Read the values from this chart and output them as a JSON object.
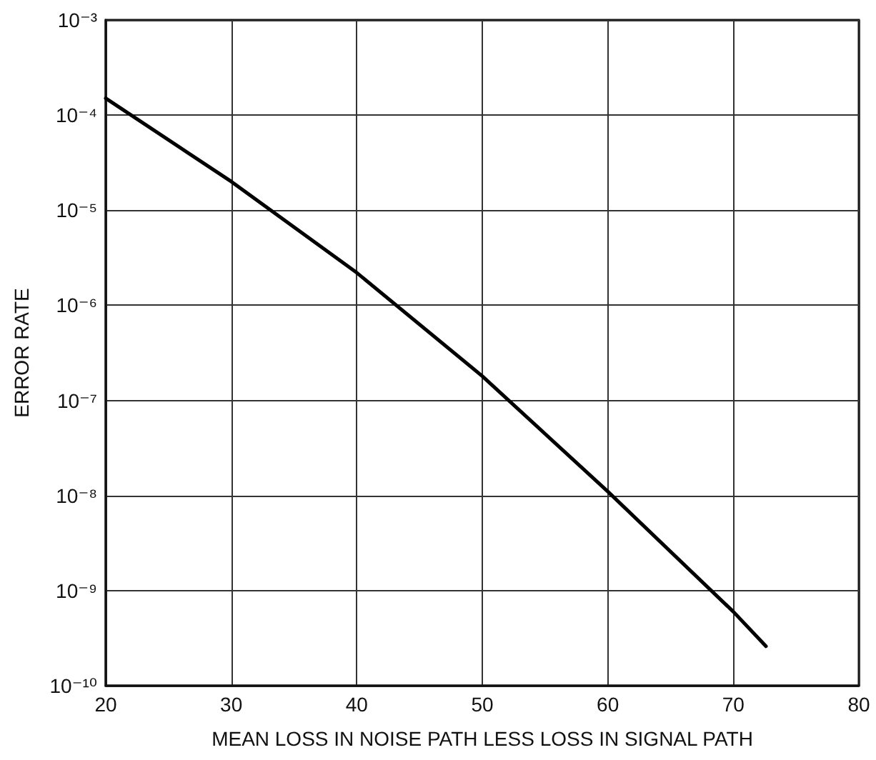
{
  "chart_data": {
    "type": "line",
    "xlabel": "MEAN LOSS IN NOISE PATH LESS LOSS IN SIGNAL PATH",
    "ylabel": "ERROR RATE",
    "x": [
      20,
      30,
      40,
      50,
      60,
      70,
      72.6
    ],
    "series": [
      {
        "color": "#000000",
        "values": [
          0.00015,
          2e-05,
          2.2e-06,
          1.8e-07,
          1.1e-08,
          6e-10,
          2.6e-10
        ]
      }
    ],
    "xlim": [
      20,
      80
    ],
    "xticks": [
      20,
      30,
      40,
      50,
      60,
      70,
      80
    ],
    "ylim": [
      1e-10,
      0.001
    ],
    "yticks": [
      {
        "value": 1e-10,
        "label": "10⁻¹⁰"
      },
      {
        "value": 1e-09,
        "label": "10⁻⁹"
      },
      {
        "value": 1e-08,
        "label": "10⁻⁸"
      },
      {
        "value": 1e-07,
        "label": "10⁻⁷"
      },
      {
        "value": 1e-06,
        "label": "10⁻⁶"
      },
      {
        "value": 1e-05,
        "label": "10⁻⁵"
      },
      {
        "value": 0.0001,
        "label": "10⁻⁴"
      },
      {
        "value": 0.001,
        "label": "10⁻³"
      }
    ],
    "log": "y",
    "grid": true,
    "marker": "none",
    "line_style": "solid"
  }
}
